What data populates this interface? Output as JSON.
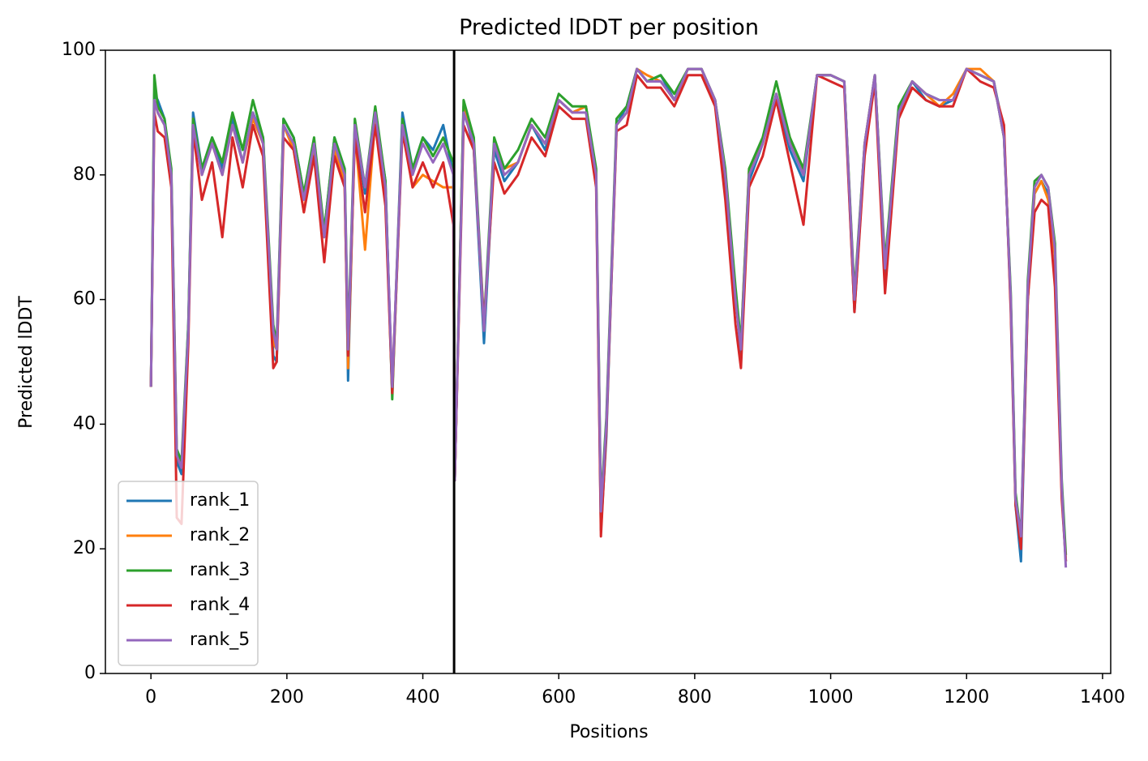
{
  "chart_data": {
    "type": "line",
    "title": "Predicted lDDT per position",
    "xlabel": "Positions",
    "ylabel": "Predicted lDDT",
    "xlim": [
      -67,
      1412
    ],
    "ylim": [
      0,
      100
    ],
    "xticks": [
      0,
      200,
      400,
      600,
      800,
      1000,
      1200,
      1400
    ],
    "yticks": [
      0,
      20,
      40,
      60,
      80,
      100
    ],
    "vlines": [
      446
    ],
    "legend": "lower left",
    "x": [
      0,
      5,
      10,
      20,
      30,
      38,
      45,
      55,
      62,
      75,
      90,
      105,
      120,
      135,
      150,
      165,
      180,
      185,
      195,
      210,
      225,
      240,
      255,
      270,
      285,
      290,
      300,
      315,
      330,
      345,
      355,
      370,
      385,
      400,
      415,
      430,
      445,
      447,
      460,
      475,
      490,
      505,
      520,
      540,
      560,
      580,
      600,
      620,
      640,
      655,
      662,
      670,
      685,
      700,
      715,
      730,
      750,
      770,
      790,
      810,
      830,
      845,
      860,
      868,
      880,
      900,
      920,
      940,
      960,
      980,
      1000,
      1020,
      1035,
      1050,
      1065,
      1080,
      1100,
      1120,
      1140,
      1160,
      1180,
      1200,
      1220,
      1240,
      1255,
      1265,
      1272,
      1280,
      1290,
      1300,
      1310,
      1320,
      1330,
      1340,
      1346
    ],
    "series": [
      {
        "name": "rank_1",
        "color": "#1f77b4",
        "values": [
          46,
          93,
          92,
          89,
          79,
          34,
          32,
          56,
          90,
          81,
          86,
          81,
          89,
          82,
          90,
          86,
          51,
          50,
          89,
          86,
          77,
          84,
          71,
          86,
          81,
          47,
          88,
          77,
          90,
          79,
          45,
          90,
          81,
          86,
          84,
          88,
          80,
          31,
          91,
          84,
          53,
          84,
          79,
          82,
          88,
          84,
          92,
          90,
          91,
          79,
          23,
          38,
          88,
          91,
          97,
          95,
          96,
          92,
          97,
          97,
          92,
          79,
          61,
          51,
          79,
          85,
          93,
          84,
          79,
          96,
          96,
          95,
          58,
          84,
          96,
          63,
          90,
          95,
          92,
          91,
          92,
          97,
          96,
          95,
          87,
          59,
          27,
          18,
          60,
          77,
          79,
          77,
          67,
          29,
          18
        ]
      },
      {
        "name": "rank_2",
        "color": "#ff7f0e",
        "values": [
          46,
          92,
          90,
          88,
          80,
          35,
          33,
          55,
          89,
          80,
          85,
          80,
          88,
          82,
          89,
          85,
          53,
          52,
          88,
          84,
          74,
          85,
          70,
          84,
          79,
          49,
          87,
          68,
          89,
          76,
          46,
          88,
          78,
          80,
          79,
          78,
          78,
          31,
          91,
          85,
          55,
          85,
          81,
          82,
          88,
          85,
          92,
          90,
          91,
          80,
          25,
          40,
          88,
          90,
          97,
          96,
          95,
          92,
          97,
          97,
          92,
          80,
          60,
          53,
          81,
          85,
          93,
          86,
          80,
          96,
          96,
          95,
          60,
          85,
          96,
          65,
          90,
          95,
          93,
          91,
          93,
          97,
          97,
          95,
          86,
          60,
          28,
          21,
          61,
          77,
          79,
          76,
          67,
          29,
          18
        ]
      },
      {
        "name": "rank_3",
        "color": "#2ca02c",
        "values": [
          46,
          96,
          91,
          89,
          81,
          36,
          34,
          56,
          89,
          81,
          86,
          82,
          90,
          84,
          92,
          86,
          56,
          53,
          89,
          86,
          77,
          86,
          71,
          86,
          81,
          53,
          89,
          78,
          91,
          79,
          44,
          89,
          81,
          86,
          83,
          86,
          82,
          31,
          92,
          86,
          56,
          86,
          81,
          84,
          89,
          86,
          93,
          91,
          91,
          81,
          27,
          41,
          89,
          91,
          97,
          95,
          96,
          93,
          97,
          97,
          92,
          81,
          62,
          53,
          81,
          86,
          95,
          86,
          81,
          96,
          96,
          95,
          61,
          85,
          96,
          66,
          91,
          95,
          93,
          92,
          92,
          97,
          96,
          95,
          86,
          61,
          29,
          22,
          63,
          79,
          80,
          78,
          69,
          31,
          19
        ]
      },
      {
        "name": "rank_4",
        "color": "#d62728",
        "values": [
          46,
          90,
          87,
          86,
          78,
          25,
          24,
          53,
          87,
          76,
          82,
          70,
          86,
          78,
          88,
          83,
          49,
          50,
          86,
          84,
          74,
          83,
          66,
          83,
          78,
          51,
          86,
          74,
          88,
          75,
          45,
          87,
          78,
          82,
          78,
          82,
          72,
          31,
          88,
          84,
          56,
          82,
          77,
          80,
          86,
          83,
          91,
          89,
          89,
          78,
          22,
          39,
          87,
          88,
          96,
          94,
          94,
          91,
          96,
          96,
          91,
          76,
          56,
          49,
          78,
          83,
          92,
          82,
          72,
          96,
          95,
          94,
          58,
          83,
          95,
          61,
          89,
          94,
          92,
          91,
          91,
          97,
          95,
          94,
          88,
          58,
          27,
          20,
          60,
          74,
          76,
          75,
          62,
          28,
          18
        ]
      },
      {
        "name": "rank_5",
        "color": "#9467bd",
        "values": [
          46,
          92,
          90,
          88,
          80,
          35,
          33,
          55,
          88,
          80,
          85,
          80,
          88,
          82,
          90,
          85,
          55,
          52,
          88,
          85,
          76,
          85,
          70,
          85,
          80,
          52,
          88,
          78,
          90,
          78,
          46,
          88,
          80,
          85,
          82,
          85,
          80,
          31,
          90,
          85,
          55,
          85,
          80,
          82,
          88,
          85,
          92,
          90,
          90,
          80,
          26,
          40,
          88,
          90,
          97,
          95,
          95,
          92,
          97,
          97,
          92,
          80,
          60,
          52,
          80,
          85,
          93,
          85,
          80,
          96,
          96,
          95,
          60,
          85,
          96,
          65,
          90,
          95,
          93,
          92,
          92,
          97,
          96,
          95,
          86,
          60,
          28,
          22,
          62,
          78,
          80,
          78,
          68,
          30,
          17
        ]
      }
    ]
  }
}
